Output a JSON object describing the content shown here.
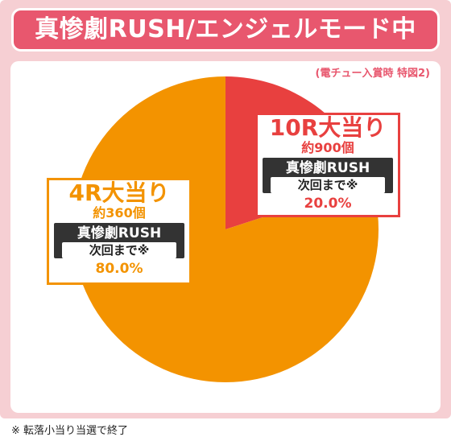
{
  "title": "真惨劇RUSH/エンジェルモード中",
  "note": "(電チュー入賞時 特図2)",
  "footnote": "※ 転落小当り当選で終了",
  "colors": {
    "frame": "#f6cfd3",
    "title": "#e8576e",
    "slice_10r": "#e8403f",
    "slice_4r": "#f39300"
  },
  "labels": {
    "r10": {
      "name": "10R大当り",
      "count": "約900個",
      "mode": "真惨劇RUSH",
      "next": "次回まで※",
      "pct": "20.0%"
    },
    "r4": {
      "name": "4R大当り",
      "count": "約360個",
      "mode": "真惨劇RUSH",
      "next": "次回まで※",
      "pct": "80.0%"
    }
  },
  "chart_data": {
    "type": "pie",
    "title": "真惨劇RUSH/エンジェルモード中",
    "subtitle": "(電チュー入賞時 特図2)",
    "categories": [
      "10R大当り",
      "4R大当り"
    ],
    "values": [
      20.0,
      80.0
    ],
    "unit": "%"
  }
}
